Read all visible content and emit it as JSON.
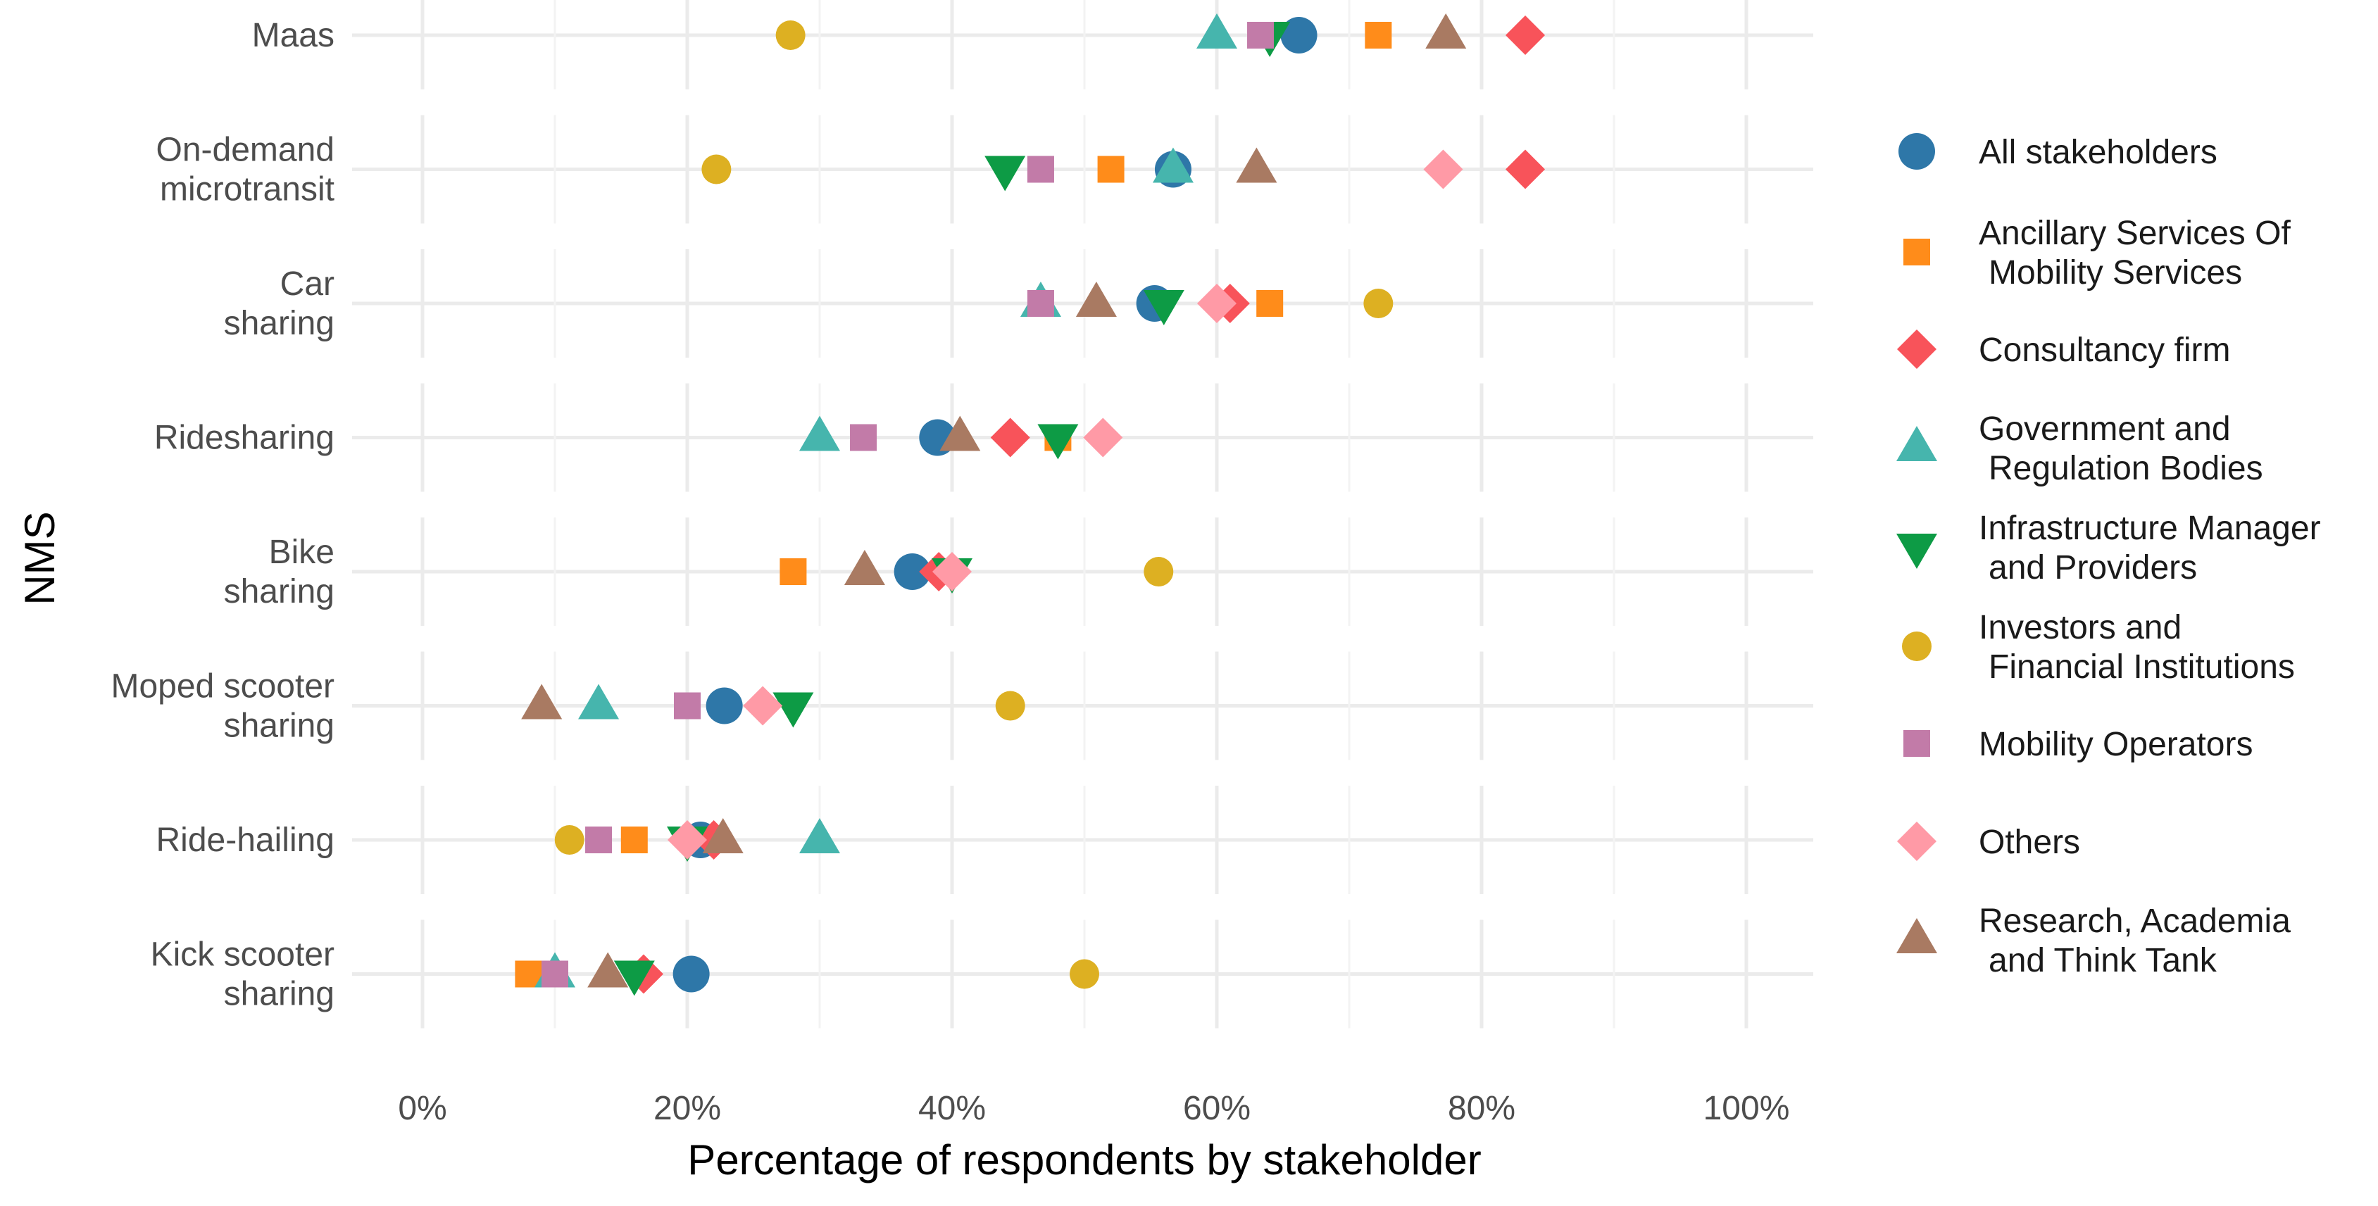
{
  "chart_data": {
    "type": "scatter",
    "title": "",
    "xlabel": "Percentage of respondents by stakeholder",
    "ylabel": "NMS",
    "xlim": [
      -5,
      105
    ],
    "x_ticks": [
      0,
      20,
      40,
      60,
      80,
      100
    ],
    "x_tick_labels": [
      "0%",
      "20%",
      "40%",
      "60%",
      "80%",
      "100%"
    ],
    "grid": true,
    "legend_position": "right",
    "categories": [
      [
        "Maas"
      ],
      [
        "On-demand",
        "microtransit"
      ],
      [
        "Car",
        "sharing"
      ],
      [
        "Ridesharing"
      ],
      [
        "Bike",
        "sharing"
      ],
      [
        "Moped scooter",
        "sharing"
      ],
      [
        "Ride-hailing"
      ],
      [
        "Kick scooter",
        "sharing"
      ]
    ],
    "series": [
      {
        "name": [
          "All stakeholders"
        ],
        "color": "#2e77a8",
        "shape": "circle",
        "values": [
          66.2,
          56.7,
          55.3,
          38.9,
          37.0,
          22.8,
          21.0,
          20.3
        ]
      },
      {
        "name": [
          "Ancillary Services Of",
          "Mobility Services"
        ],
        "color": "#ff8c1a",
        "shape": "square",
        "values": [
          72.2,
          52.0,
          64.0,
          48.0,
          28.0,
          null,
          16.0,
          8.0
        ]
      },
      {
        "name": [
          "Consultancy firm"
        ],
        "color": "#f8535a",
        "shape": "diamond",
        "values": [
          83.3,
          83.3,
          61.0,
          44.4,
          39.0,
          null,
          22.0,
          16.7
        ]
      },
      {
        "name": [
          "Government and",
          "Regulation Bodies"
        ],
        "color": "#46b5ad",
        "shape": "triangle-up",
        "values": [
          60.0,
          56.7,
          46.7,
          30.0,
          null,
          13.3,
          30.0,
          10.0
        ]
      },
      {
        "name": [
          "Infrastructure Manager",
          "and Providers"
        ],
        "color": "#0d9b45",
        "shape": "triangle-down",
        "values": [
          64.0,
          44.0,
          56.0,
          48.0,
          40.0,
          28.0,
          20.0,
          16.0
        ]
      },
      {
        "name": [
          "Investors and",
          "Financial Institutions"
        ],
        "color": "#ddb022",
        "shape": "circle-small",
        "values": [
          27.8,
          22.2,
          72.2,
          null,
          55.6,
          44.4,
          11.1,
          50.0
        ]
      },
      {
        "name": [
          "Mobility Operators"
        ],
        "color": "#c27ba8",
        "shape": "square",
        "values": [
          63.3,
          46.7,
          46.7,
          33.3,
          null,
          20.0,
          13.3,
          10.0
        ]
      },
      {
        "name": [
          "Others"
        ],
        "color": "#ff9aa6",
        "shape": "diamond",
        "values": [
          null,
          77.1,
          60.0,
          51.4,
          40.0,
          25.7,
          20.0,
          null
        ]
      },
      {
        "name": [
          "Research, Academia",
          "and Think Tank"
        ],
        "color": "#a97a62",
        "shape": "triangle-up",
        "values": [
          77.3,
          63.0,
          50.9,
          40.6,
          33.4,
          9.0,
          22.7,
          14.0
        ]
      }
    ]
  }
}
